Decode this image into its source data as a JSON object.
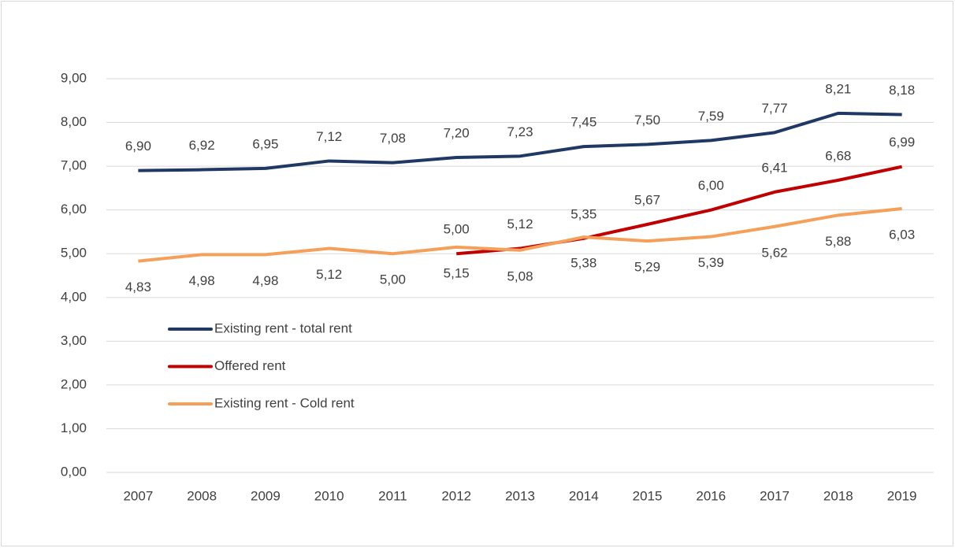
{
  "chart_data": {
    "type": "line",
    "categories": [
      "2007",
      "2008",
      "2009",
      "2010",
      "2011",
      "2012",
      "2013",
      "2014",
      "2015",
      "2016",
      "2017",
      "2018",
      "2019"
    ],
    "ylim": [
      0,
      9
    ],
    "yticks": [
      {
        "value": 0,
        "label": "0,00"
      },
      {
        "value": 1,
        "label": "1,00"
      },
      {
        "value": 2,
        "label": "2,00"
      },
      {
        "value": 3,
        "label": "3,00"
      },
      {
        "value": 4,
        "label": "4,00"
      },
      {
        "value": 5,
        "label": "5,00"
      },
      {
        "value": 6,
        "label": "6,00"
      },
      {
        "value": 7,
        "label": "7,00"
      },
      {
        "value": 8,
        "label": "8,00"
      },
      {
        "value": 9,
        "label": "9,00"
      }
    ],
    "grid": true,
    "legend": "left",
    "series": [
      {
        "name": "Existing rent - total rent",
        "color": "#203864",
        "values": [
          6.9,
          6.92,
          6.95,
          7.12,
          7.08,
          7.2,
          7.23,
          7.45,
          7.5,
          7.59,
          7.77,
          8.21,
          8.18
        ],
        "value_labels": [
          "6,90",
          "6,92",
          "6,95",
          "7,12",
          "7,08",
          "7,20",
          "7,23",
          "7,45",
          "7,50",
          "7,59",
          "7,77",
          "8,21",
          "8,18"
        ]
      },
      {
        "name": "Offered rent",
        "color": "#c00000",
        "values": [
          null,
          null,
          null,
          null,
          null,
          5.0,
          5.12,
          5.35,
          5.67,
          6.0,
          6.41,
          6.68,
          6.99
        ],
        "value_labels": [
          null,
          null,
          null,
          null,
          null,
          "5,00",
          "5,12",
          "5,35",
          "5,67",
          "6,00",
          "6,41",
          "6,68",
          "6,99"
        ]
      },
      {
        "name": "Existing rent - Cold rent",
        "color": "#f4a05a",
        "values": [
          4.83,
          4.98,
          4.98,
          5.12,
          5.0,
          5.15,
          5.08,
          5.38,
          5.29,
          5.39,
          5.62,
          5.88,
          6.03
        ],
        "value_labels": [
          "4,83",
          "4,98",
          "4,98",
          "5,12",
          "5,00",
          "5,15",
          "5,08",
          "5,38",
          "5,29",
          "5,39",
          "5,62",
          "5,88",
          "6,03"
        ]
      }
    ]
  }
}
